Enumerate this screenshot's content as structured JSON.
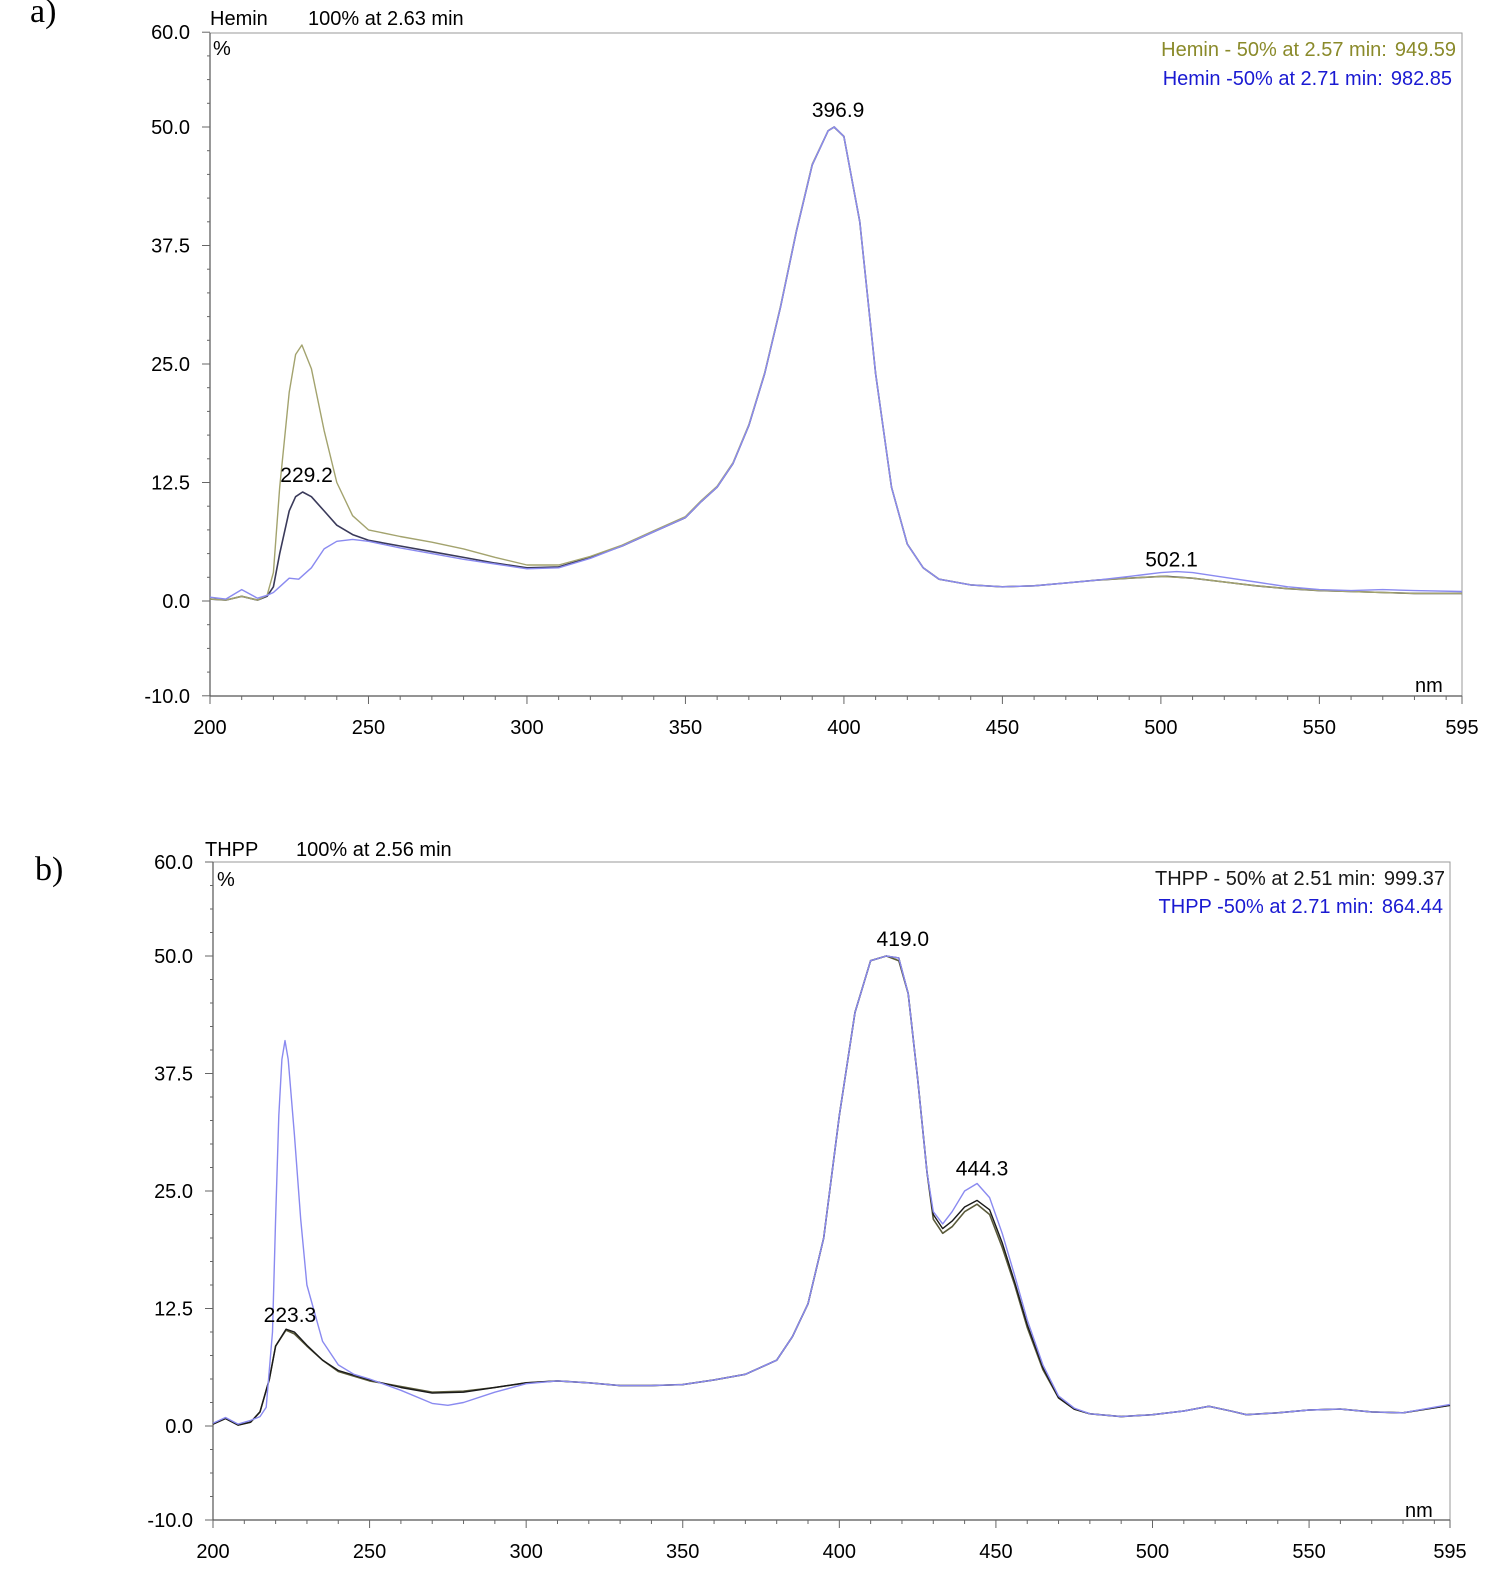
{
  "chart_data": [
    {
      "panel": "a)",
      "type": "line",
      "header": [
        "Hemin",
        "100% at 2.63 min"
      ],
      "ylabel": "%",
      "xlabel": "nm",
      "xlim": [
        200,
        595
      ],
      "ylim": [
        -10,
        60
      ],
      "x_ticks": [
        "200",
        "250",
        "300",
        "350",
        "400",
        "450",
        "500",
        "550",
        "595"
      ],
      "y_ticks": [
        "60.0",
        "50.0",
        "37.5",
        "25.0",
        "12.5",
        "0.0",
        "-10.0"
      ],
      "legend": [
        {
          "label": "Hemin - 50% at 2.57 min:",
          "value": "949.59",
          "color": "#8a8a2a"
        },
        {
          "label": "Hemin -50% at 2.71 min:",
          "value": "982.85",
          "color": "#1a1ad2"
        }
      ],
      "peak_labels": [
        {
          "text": "229.2",
          "x": 229.2,
          "y": 11.5
        },
        {
          "text": "396.9",
          "x": 396.9,
          "y": 50.0
        },
        {
          "text": "502.1",
          "x": 502.1,
          "y": 2.6
        }
      ],
      "series": [
        {
          "name": "Hemin 100% at 2.63 min",
          "color": "#3a3a5a",
          "x": [
            200,
            205,
            210,
            215,
            218,
            220,
            222,
            225,
            227,
            229.2,
            232,
            236,
            240,
            245,
            250,
            260,
            270,
            280,
            290,
            300,
            310,
            320,
            330,
            340,
            350,
            355,
            360,
            365,
            370,
            375,
            380,
            385,
            390,
            395,
            396.9,
            400,
            405,
            410,
            415,
            420,
            425,
            430,
            440,
            450,
            460,
            470,
            480,
            490,
            500,
            502.1,
            510,
            520,
            530,
            540,
            550,
            560,
            570,
            580,
            595
          ],
          "y": [
            0.2,
            0.1,
            0.5,
            0.1,
            0.5,
            1.5,
            5.0,
            9.5,
            11.0,
            11.5,
            11.0,
            9.5,
            8.0,
            7.0,
            6.4,
            5.8,
            5.2,
            4.6,
            4.0,
            3.5,
            3.6,
            4.6,
            5.8,
            7.3,
            8.8,
            10.5,
            12.0,
            14.5,
            18.5,
            24.0,
            31.0,
            39.0,
            46.0,
            49.6,
            50.0,
            49.0,
            40.0,
            24.0,
            12.0,
            6.0,
            3.5,
            2.3,
            1.7,
            1.5,
            1.6,
            1.9,
            2.2,
            2.4,
            2.6,
            2.6,
            2.4,
            2.0,
            1.6,
            1.3,
            1.1,
            1.0,
            0.9,
            0.8,
            0.8
          ]
        },
        {
          "name": "Hemin - 50% at 2.57 min",
          "color": "#a3a36e",
          "x": [
            200,
            205,
            210,
            215,
            218,
            220,
            222,
            225,
            227,
            229,
            232,
            236,
            240,
            245,
            250,
            260,
            270,
            280,
            290,
            300,
            310,
            320,
            330,
            340,
            350,
            355,
            360,
            365,
            370,
            375,
            380,
            385,
            390,
            395,
            397,
            400,
            405,
            410,
            415,
            420,
            425,
            430,
            440,
            450,
            460,
            470,
            480,
            490,
            500,
            510,
            520,
            530,
            540,
            550,
            560,
            570,
            580,
            595
          ],
          "y": [
            0.2,
            0.1,
            0.5,
            0.1,
            0.6,
            3.0,
            12.0,
            22.0,
            26.0,
            27.0,
            24.5,
            18.0,
            12.5,
            9.0,
            7.5,
            6.8,
            6.2,
            5.5,
            4.6,
            3.8,
            3.8,
            4.7,
            5.9,
            7.4,
            8.9,
            10.6,
            12.1,
            14.6,
            18.6,
            24.1,
            31.1,
            39.1,
            46.1,
            49.6,
            50.0,
            49.0,
            40.0,
            24.0,
            12.0,
            6.0,
            3.5,
            2.3,
            1.7,
            1.5,
            1.6,
            1.9,
            2.2,
            2.4,
            2.6,
            2.4,
            2.0,
            1.6,
            1.3,
            1.1,
            1.0,
            0.9,
            0.8,
            0.8
          ]
        },
        {
          "name": "Hemin -50% at 2.71 min",
          "color": "#8a8af0",
          "x": [
            200,
            205,
            210,
            215,
            218,
            220,
            222,
            225,
            228,
            232,
            236,
            240,
            245,
            250,
            260,
            270,
            280,
            290,
            300,
            310,
            320,
            330,
            340,
            350,
            355,
            360,
            365,
            370,
            375,
            380,
            385,
            390,
            395,
            397,
            400,
            405,
            410,
            415,
            420,
            425,
            430,
            440,
            450,
            460,
            470,
            480,
            490,
            500,
            505,
            510,
            520,
            530,
            540,
            550,
            560,
            570,
            580,
            595
          ],
          "y": [
            0.4,
            0.2,
            1.2,
            0.3,
            0.6,
            0.9,
            1.5,
            2.4,
            2.3,
            3.5,
            5.5,
            6.3,
            6.5,
            6.3,
            5.6,
            5.0,
            4.4,
            3.9,
            3.4,
            3.5,
            4.5,
            5.8,
            7.3,
            8.8,
            10.5,
            12.0,
            14.5,
            18.5,
            24.0,
            31.0,
            39.0,
            46.0,
            49.6,
            50.0,
            49.0,
            40.0,
            24.0,
            12.0,
            6.0,
            3.5,
            2.3,
            1.7,
            1.5,
            1.6,
            1.9,
            2.2,
            2.6,
            3.0,
            3.1,
            3.0,
            2.5,
            2.0,
            1.5,
            1.2,
            1.1,
            1.2,
            1.1,
            1.0
          ]
        }
      ]
    },
    {
      "panel": "b)",
      "type": "line",
      "header": [
        "THPP",
        "100% at 2.56 min"
      ],
      "ylabel": "%",
      "xlabel": "nm",
      "xlim": [
        200,
        595
      ],
      "ylim": [
        -10,
        60
      ],
      "x_ticks": [
        "200",
        "250",
        "300",
        "350",
        "400",
        "450",
        "500",
        "550",
        "595"
      ],
      "y_ticks": [
        "60.0",
        "50.0",
        "37.5",
        "25.0",
        "12.5",
        "0.0",
        "-10.0"
      ],
      "legend": [
        {
          "label": "THPP - 50% at 2.51 min:",
          "value": "999.37",
          "color": "#1a1a1a"
        },
        {
          "label": "THPP -50% at 2.71 min:",
          "value": "864.44",
          "color": "#1a1ad2"
        }
      ],
      "peak_labels": [
        {
          "text": "223.3",
          "x": 223.3,
          "y": 10.0
        },
        {
          "text": "419.0",
          "x": 419.0,
          "y": 50.0
        },
        {
          "text": "444.3",
          "x": 444.3,
          "y": 25.6
        }
      ],
      "series": [
        {
          "name": "THPP 100% at 2.56 min",
          "color": "#5a5a3a",
          "x": [
            200,
            204,
            208,
            212,
            215,
            218,
            220,
            223.3,
            226,
            230,
            235,
            240,
            250,
            260,
            270,
            280,
            290,
            300,
            310,
            320,
            330,
            340,
            350,
            360,
            370,
            380,
            385,
            390,
            395,
            400,
            405,
            410,
            415,
            419,
            422,
            425,
            428,
            430,
            433,
            436,
            440,
            444,
            448,
            452,
            456,
            460,
            465,
            470,
            475,
            480,
            490,
            500,
            510,
            518,
            525,
            530,
            540,
            550,
            560,
            570,
            580,
            595
          ],
          "y": [
            0.2,
            0.8,
            0.1,
            0.4,
            1.5,
            5.0,
            8.5,
            10.2,
            9.8,
            8.5,
            7.0,
            5.8,
            4.8,
            4.2,
            3.6,
            3.7,
            4.1,
            4.6,
            4.8,
            4.6,
            4.3,
            4.3,
            4.4,
            4.9,
            5.5,
            7.0,
            9.5,
            13.0,
            20.0,
            33.0,
            44.0,
            49.5,
            50.0,
            49.5,
            46.0,
            37.0,
            27.0,
            22.0,
            20.5,
            21.2,
            22.8,
            23.6,
            22.5,
            19.0,
            15.0,
            10.5,
            6.0,
            3.0,
            1.8,
            1.3,
            1.0,
            1.2,
            1.6,
            2.1,
            1.6,
            1.2,
            1.4,
            1.7,
            1.8,
            1.5,
            1.4,
            2.2
          ]
        },
        {
          "name": "THPP - 50% at 2.51 min",
          "color": "#1a1a1a",
          "x": [
            200,
            204,
            208,
            212,
            215,
            218,
            220,
            223.3,
            226,
            230,
            235,
            240,
            250,
            260,
            270,
            280,
            290,
            300,
            310,
            320,
            330,
            340,
            350,
            360,
            370,
            380,
            385,
            390,
            395,
            400,
            405,
            410,
            415,
            419,
            422,
            425,
            428,
            430,
            433,
            436,
            440,
            444,
            448,
            452,
            456,
            460,
            465,
            470,
            475,
            480,
            490,
            500,
            510,
            518,
            525,
            530,
            540,
            550,
            560,
            570,
            580,
            595
          ],
          "y": [
            0.2,
            0.8,
            0.1,
            0.4,
            1.5,
            5.0,
            8.5,
            10.3,
            10.0,
            8.6,
            7.0,
            5.9,
            4.9,
            4.1,
            3.5,
            3.6,
            4.1,
            4.6,
            4.8,
            4.6,
            4.3,
            4.3,
            4.4,
            4.9,
            5.5,
            7.0,
            9.5,
            13.0,
            20.0,
            33.0,
            44.0,
            49.5,
            50.0,
            49.8,
            46.0,
            37.0,
            27.0,
            22.5,
            21.0,
            21.8,
            23.3,
            24.0,
            23.0,
            19.5,
            15.3,
            10.8,
            6.2,
            3.0,
            1.8,
            1.3,
            1.0,
            1.2,
            1.6,
            2.1,
            1.6,
            1.2,
            1.4,
            1.7,
            1.8,
            1.5,
            1.4,
            2.2
          ]
        },
        {
          "name": "THPP -50% at 2.71 min",
          "color": "#8a8af0",
          "x": [
            200,
            204,
            208,
            212,
            215,
            217,
            219,
            220,
            221,
            222,
            223,
            224,
            226,
            228,
            230,
            235,
            240,
            245,
            250,
            260,
            270,
            275,
            280,
            290,
            300,
            310,
            320,
            330,
            340,
            350,
            360,
            370,
            380,
            385,
            390,
            395,
            400,
            405,
            410,
            415,
            419,
            422,
            425,
            428,
            430,
            433,
            436,
            440,
            444,
            448,
            452,
            456,
            460,
            465,
            470,
            475,
            480,
            490,
            500,
            510,
            518,
            525,
            530,
            540,
            550,
            560,
            570,
            580,
            595
          ],
          "y": [
            0.3,
            0.9,
            0.2,
            0.6,
            1.0,
            2.0,
            10.0,
            22.0,
            33.0,
            39.0,
            41.0,
            39.0,
            31.0,
            22.0,
            15.0,
            9.0,
            6.5,
            5.5,
            5.0,
            3.8,
            2.4,
            2.2,
            2.5,
            3.6,
            4.5,
            4.8,
            4.6,
            4.3,
            4.3,
            4.4,
            4.9,
            5.5,
            7.0,
            9.5,
            13.0,
            20.0,
            33.0,
            44.0,
            49.5,
            50.0,
            49.8,
            46.0,
            37.0,
            27.0,
            22.8,
            21.5,
            22.8,
            25.0,
            25.8,
            24.3,
            20.5,
            16.0,
            11.3,
            6.5,
            3.2,
            1.9,
            1.3,
            1.0,
            1.2,
            1.6,
            2.1,
            1.6,
            1.2,
            1.4,
            1.7,
            1.8,
            1.5,
            1.4,
            2.3
          ]
        }
      ]
    }
  ]
}
